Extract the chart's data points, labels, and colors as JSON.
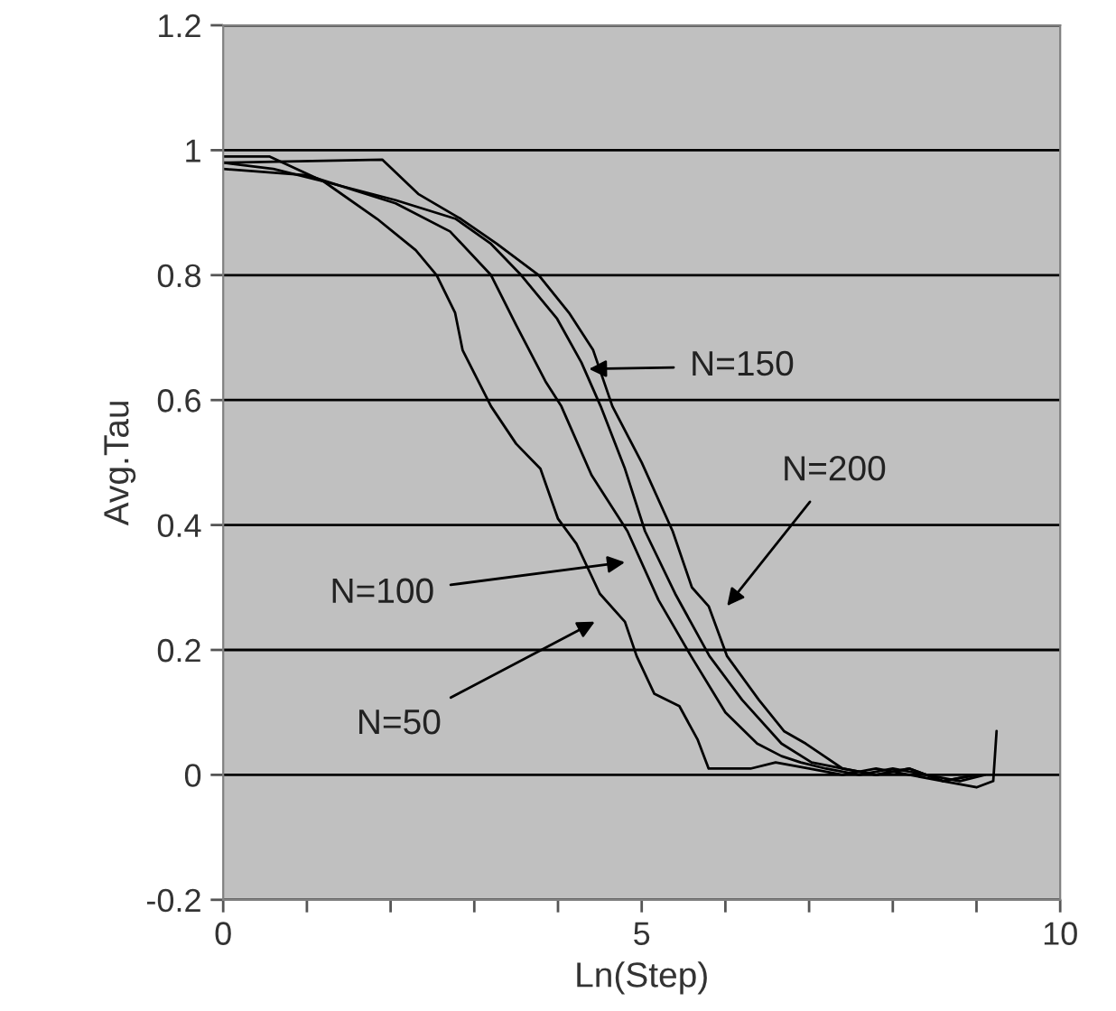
{
  "chart_data": {
    "type": "line",
    "xlabel": "Ln(Step)",
    "ylabel": "Avg.Tau",
    "xlim": [
      0,
      10
    ],
    "ylim": [
      -0.2,
      1.2
    ],
    "xticks": [
      0,
      {
        "value": 1,
        "label": null
      },
      {
        "value": 2,
        "label": null
      },
      {
        "value": 3,
        "label": null
      },
      {
        "value": 4,
        "label": null
      },
      5,
      {
        "value": 6,
        "label": null
      },
      {
        "value": 7,
        "label": null
      },
      {
        "value": 8,
        "label": null
      },
      {
        "value": 9,
        "label": null
      },
      10
    ],
    "yticks": [
      -0.2,
      0,
      0.2,
      0.4,
      0.6,
      0.8,
      1,
      1.2
    ],
    "grid": "y",
    "legend": false,
    "line_style": "solid",
    "marker": "none",
    "series": [
      {
        "color": "#000000",
        "x": [
          0,
          0.6,
          1.2,
          1.84,
          2.3,
          2.55,
          2.77,
          2.86,
          3.2,
          3.5,
          3.79,
          4.0,
          4.22,
          4.5,
          4.8,
          4.94,
          5.15,
          5.45,
          5.67,
          5.8,
          6.0,
          6.3,
          6.6,
          7.0,
          7.4,
          7.8,
          8.2,
          8.6,
          9.0
        ],
        "values": [
          0.98,
          0.97,
          0.95,
          0.89,
          0.84,
          0.8,
          0.74,
          0.68,
          0.59,
          0.53,
          0.49,
          0.41,
          0.37,
          0.29,
          0.245,
          0.19,
          0.13,
          0.11,
          0.056,
          0.01,
          0.01,
          0.01,
          0.02,
          0.01,
          0.0,
          0.01,
          0.0,
          -0.01,
          0.0
        ]
      },
      {
        "color": "#000000",
        "x": [
          0,
          1.0,
          2.06,
          2.71,
          3.2,
          3.5,
          3.85,
          4.04,
          4.4,
          4.83,
          5.2,
          5.59,
          6.0,
          6.38,
          6.67,
          6.9,
          7.2,
          7.6,
          8.0,
          8.4,
          8.8,
          9.1
        ],
        "values": [
          0.97,
          0.96,
          0.915,
          0.87,
          0.8,
          0.72,
          0.63,
          0.59,
          0.48,
          0.39,
          0.28,
          0.19,
          0.1,
          0.05,
          0.03,
          0.02,
          0.01,
          0.0,
          0.01,
          0.0,
          -0.01,
          0.0
        ]
      },
      {
        "color": "#000000",
        "x": [
          0,
          0.55,
          1.2,
          2.06,
          2.78,
          3.2,
          3.56,
          3.99,
          4.28,
          4.51,
          4.8,
          5.04,
          5.4,
          5.81,
          6.2,
          6.67,
          7.03,
          7.4,
          7.8,
          8.2,
          8.6,
          9.0
        ],
        "values": [
          0.99,
          0.99,
          0.95,
          0.92,
          0.89,
          0.85,
          0.8,
          0.73,
          0.66,
          0.59,
          0.49,
          0.39,
          0.29,
          0.19,
          0.12,
          0.05,
          0.02,
          0.01,
          0.0,
          0.01,
          -0.01,
          0.0
        ]
      },
      {
        "color": "#000000",
        "x": [
          0,
          1.9,
          2.33,
          2.84,
          3.27,
          3.77,
          4.13,
          4.42,
          4.65,
          5.0,
          5.37,
          5.6,
          5.8,
          6.02,
          6.4,
          6.7,
          6.96,
          7.18,
          7.4,
          7.8,
          8.2,
          8.6,
          9.0,
          9.2,
          9.24
        ],
        "values": [
          0.98,
          0.985,
          0.93,
          0.89,
          0.85,
          0.8,
          0.74,
          0.68,
          0.59,
          0.5,
          0.39,
          0.3,
          0.27,
          0.19,
          0.12,
          0.07,
          0.05,
          0.03,
          0.01,
          0.0,
          0.01,
          -0.01,
          -0.02,
          -0.01,
          0.07
        ]
      }
    ],
    "annotations": [
      "N=150",
      "N=200",
      "N=100",
      "N=50"
    ]
  }
}
